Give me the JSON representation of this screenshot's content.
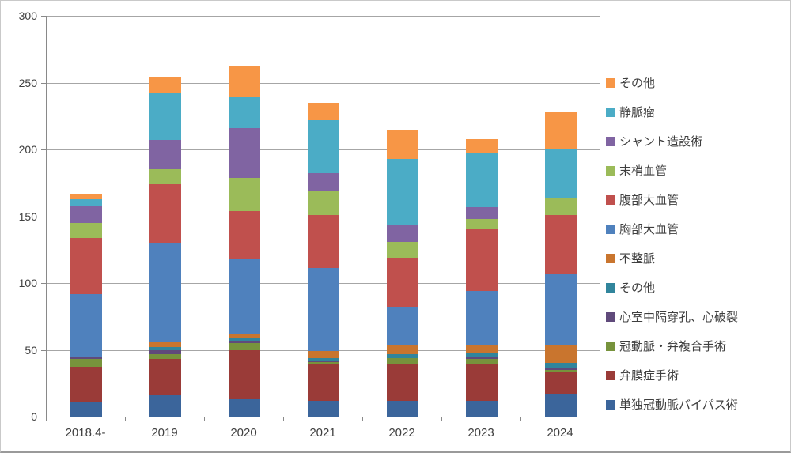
{
  "chart_data": {
    "type": "bar",
    "stacked": true,
    "title": "",
    "xlabel": "",
    "ylabel": "",
    "categories": [
      "2018.4-",
      "2019",
      "2020",
      "2021",
      "2022",
      "2023",
      "2024"
    ],
    "series": [
      {
        "name": "単独冠動脈バイパス術",
        "color": "#3B659B",
        "values": [
          11,
          16,
          13,
          12,
          12,
          12,
          17
        ]
      },
      {
        "name": "弁膜症手術",
        "color": "#9A3B38",
        "values": [
          26,
          27,
          37,
          27,
          27,
          27,
          16
        ]
      },
      {
        "name": "冠動脈・弁複合手術",
        "color": "#77933C",
        "values": [
          6,
          4,
          5,
          2,
          5,
          4,
          2
        ]
      },
      {
        "name": "心室中隔穿孔、心破裂",
        "color": "#604A7B",
        "values": [
          2,
          3,
          2,
          1,
          0,
          2,
          1
        ]
      },
      {
        "name": "その他",
        "color": "#31859C",
        "values": [
          0,
          2,
          2,
          2,
          3,
          3,
          4
        ]
      },
      {
        "name": "不整脈",
        "color": "#C9752E",
        "values": [
          0,
          4,
          3,
          5,
          6,
          6,
          13
        ]
      },
      {
        "name": "胸部大血管",
        "color": "#4F81BD",
        "values": [
          47,
          74,
          56,
          62,
          29,
          40,
          54
        ]
      },
      {
        "name": "腹部大血管",
        "color": "#C0504D",
        "values": [
          42,
          44,
          36,
          40,
          37,
          46,
          44
        ]
      },
      {
        "name": "末梢血管",
        "color": "#9BBB59",
        "values": [
          11,
          11,
          25,
          18,
          12,
          8,
          13
        ]
      },
      {
        "name": "シャント造設術",
        "color": "#8064A2",
        "values": [
          13,
          22,
          37,
          13,
          12,
          9,
          0
        ]
      },
      {
        "name": "静脈瘤",
        "color": "#4BACC6",
        "values": [
          5,
          35,
          23,
          40,
          50,
          40,
          36
        ]
      },
      {
        "name": "その他",
        "color": "#F79646",
        "values": [
          4,
          12,
          24,
          13,
          21,
          11,
          28
        ]
      }
    ],
    "totals": [
      167,
      254,
      263,
      235,
      214,
      208,
      228
    ],
    "ylim": [
      0,
      300
    ],
    "ytick_step": 50,
    "y_tick_labels": [
      "0",
      "50",
      "100",
      "150",
      "200",
      "250",
      "300"
    ],
    "grid": true,
    "legend_position": "right",
    "legend_order": "top-of-stack-first",
    "colors": {
      "gridline": "#a6a6a6",
      "axis": "#898989",
      "text": "#3f3f3f",
      "background": "#ffffff"
    }
  }
}
